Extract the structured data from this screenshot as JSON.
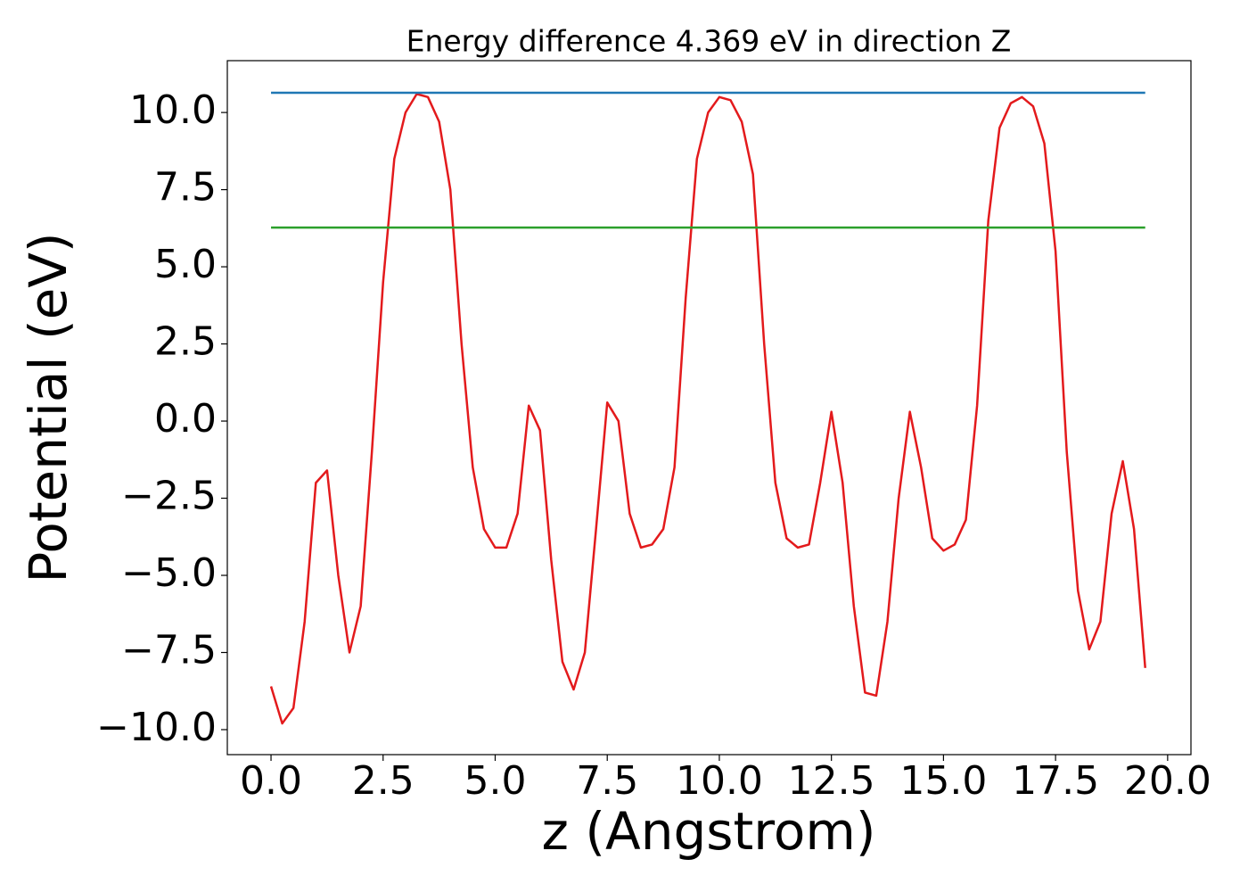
{
  "chart_data": {
    "type": "line",
    "title": "Energy difference 4.369 eV in direction Z",
    "x_label": "z (Angstrom)",
    "y_label": "Potential (eV)",
    "series": [
      {
        "color": "#e31a1c",
        "x": [
          0,
          0.25,
          0.5,
          0.75,
          1,
          1.25,
          1.5,
          1.75,
          2,
          2.25,
          2.5,
          2.75,
          3,
          3.25,
          3.5,
          3.75,
          4,
          4.25,
          4.5,
          4.75,
          5,
          5.25,
          5.5,
          5.75,
          6,
          6.25,
          6.5,
          6.75,
          7,
          7.25,
          7.5,
          7.75,
          8,
          8.25,
          8.5,
          8.75,
          9,
          9.25,
          9.5,
          9.75,
          10,
          10.25,
          10.5,
          10.75,
          11,
          11.25,
          11.5,
          11.75,
          12,
          12.25,
          12.5,
          12.75,
          13,
          13.25,
          13.5,
          13.75,
          14,
          14.25,
          14.5,
          14.75,
          15,
          15.25,
          15.5,
          15.75,
          16,
          16.25,
          16.5,
          16.75,
          17,
          17.25,
          17.5,
          17.75,
          18,
          18.25,
          18.5,
          18.75,
          19,
          19.25,
          19.5
        ],
        "values": [
          -8.6,
          -9.8,
          -9.3,
          -6.5,
          -2.0,
          -1.6,
          -5.0,
          -7.5,
          -6.0,
          -1.0,
          4.5,
          8.5,
          10.0,
          10.6,
          10.5,
          9.7,
          7.5,
          2.5,
          -1.5,
          -3.5,
          -4.1,
          -4.1,
          -3.0,
          0.5,
          -0.3,
          -4.5,
          -7.8,
          -8.7,
          -7.5,
          -3.5,
          0.6,
          0.0,
          -3.0,
          -4.1,
          -4.0,
          -3.5,
          -1.5,
          4.0,
          8.5,
          10.0,
          10.5,
          10.4,
          9.7,
          8.0,
          2.5,
          -2.0,
          -3.8,
          -4.1,
          -4.0,
          -2.0,
          0.3,
          -2.0,
          -6.0,
          -8.8,
          -8.9,
          -6.5,
          -2.5,
          0.3,
          -1.5,
          -3.8,
          -4.2,
          -4.0,
          -3.2,
          0.5,
          6.5,
          9.5,
          10.3,
          10.5,
          10.2,
          9.0,
          5.5,
          -1.0,
          -5.5,
          -7.4,
          -6.5,
          -3.0,
          -1.3,
          -3.5,
          -8.0
        ]
      },
      {
        "color": "#1f77b4",
        "x": [
          0,
          19.5
        ],
        "values": [
          10.64,
          10.64
        ]
      },
      {
        "color": "#2ca02c",
        "x": [
          0,
          19.5
        ],
        "values": [
          6.27,
          6.27
        ]
      }
    ],
    "xlim": [
      -0.975,
      20.52
    ],
    "ylim": [
      -10.81,
      11.68
    ],
    "xticks": [
      {
        "value": 0,
        "label": "0.0"
      },
      {
        "value": 2.5,
        "label": "2.5"
      },
      {
        "value": 5,
        "label": "5.0"
      },
      {
        "value": 7.5,
        "label": "7.5"
      },
      {
        "value": 10,
        "label": "10.0"
      },
      {
        "value": 12.5,
        "label": "12.5"
      },
      {
        "value": 15,
        "label": "15.0"
      },
      {
        "value": 17.5,
        "label": "17.5"
      },
      {
        "value": 20,
        "label": "20.0"
      }
    ],
    "yticks": [
      {
        "value": -10,
        "label": "−10.0"
      },
      {
        "value": -7.5,
        "label": "−7.5"
      },
      {
        "value": -5,
        "label": "−5.0"
      },
      {
        "value": -2.5,
        "label": "−2.5"
      },
      {
        "value": 0,
        "label": "0.0"
      },
      {
        "value": 2.5,
        "label": "2.5"
      },
      {
        "value": 5,
        "label": "5.0"
      },
      {
        "value": 7.5,
        "label": "7.5"
      },
      {
        "value": 10,
        "label": "10.0"
      }
    ],
    "grid": false
  }
}
